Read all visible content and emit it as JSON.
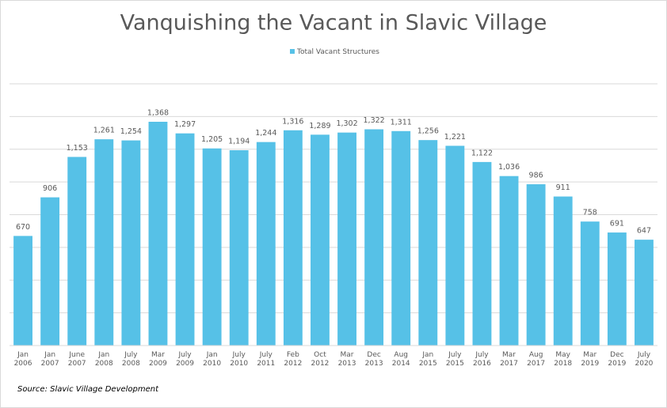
{
  "chart_data": {
    "type": "bar",
    "title": "Vanquishing the Vacant in Slavic Village",
    "source": "Source: Slavic Village Development",
    "categories": [
      "Jan\n2006",
      "Jan\n2007",
      "June\n2007",
      "Jan\n2008",
      "July\n2008",
      "Mar\n2009",
      "July\n2009",
      "Jan\n2010",
      "July\n2010",
      "July\n2011",
      "Feb\n2012",
      "Oct\n2012",
      "Mar\n2013",
      "Dec\n2013",
      "Aug\n2014",
      "Jan\n2015",
      "July\n2015",
      "July\n2016",
      "Mar\n2017",
      "Aug\n2017",
      "May\n2018",
      "Mar\n2019",
      "Dec\n2019",
      "July\n2020"
    ],
    "series": [
      {
        "name": "Total Vacant Structures",
        "color": "#56c1e7",
        "values": [
          670,
          906,
          1153,
          1261,
          1254,
          1368,
          1297,
          1205,
          1194,
          1244,
          1316,
          1289,
          1302,
          1322,
          1311,
          1256,
          1221,
          1122,
          1036,
          986,
          911,
          758,
          691,
          647
        ],
        "value_labels": [
          "670",
          "906",
          "1,153",
          "1,261",
          "1,254",
          "1,368",
          "1,297",
          "1,205",
          "1,194",
          "1,244",
          "1,316",
          "1,289",
          "1,302",
          "1,322",
          "1,311",
          "1,256",
          "1,221",
          "1,122",
          "1,036",
          "986",
          "911",
          "758",
          "691",
          "647"
        ]
      }
    ],
    "ylim": [
      0,
      1600
    ],
    "yticks": [
      0,
      200,
      400,
      600,
      800,
      1000,
      1200,
      1400,
      1600
    ],
    "grid": true,
    "legend": "top"
  }
}
